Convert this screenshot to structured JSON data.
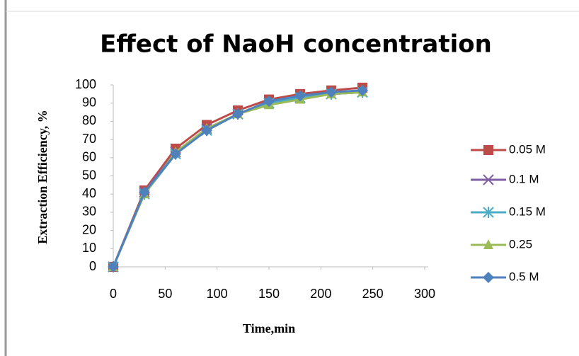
{
  "chart_data": {
    "type": "line",
    "title": "Effect of NaoH concentration",
    "x_label": "Time,min",
    "y_label": "Extraction Efficiency, %",
    "x": [
      0,
      30,
      60,
      90,
      120,
      150,
      180,
      210,
      240
    ],
    "series": [
      {
        "name": "0.05 M",
        "color": "#be4b48",
        "marker": "square",
        "values": [
          0,
          42,
          65,
          78,
          86,
          92,
          95,
          97,
          98.5
        ]
      },
      {
        "name": "0.1 M",
        "color": "#7e5fa1",
        "marker": "x",
        "values": [
          0,
          41,
          63,
          76,
          84,
          90,
          93,
          95,
          96
        ]
      },
      {
        "name": "0.15 M",
        "color": "#4bacc6",
        "marker": "asterisk",
        "values": [
          0,
          40,
          62,
          75,
          84,
          90,
          93,
          95,
          96
        ]
      },
      {
        "name": "0.25",
        "color": "#9bbb59",
        "marker": "triangle",
        "values": [
          0,
          40,
          63,
          76,
          84,
          89,
          92,
          95,
          96
        ]
      },
      {
        "name": "0.5 M",
        "color": "#4f81bd",
        "marker": "diamond",
        "values": [
          0,
          41,
          62,
          75,
          84,
          91,
          94,
          96,
          97
        ]
      }
    ],
    "xlim": [
      0,
      300
    ],
    "xticks": [
      0,
      50,
      100,
      150,
      200,
      250,
      300
    ],
    "ylim": [
      0,
      100
    ],
    "yticks": [
      0,
      10,
      20,
      30,
      40,
      50,
      60,
      70,
      80,
      90,
      100
    ],
    "grid": false,
    "legend": "right"
  }
}
